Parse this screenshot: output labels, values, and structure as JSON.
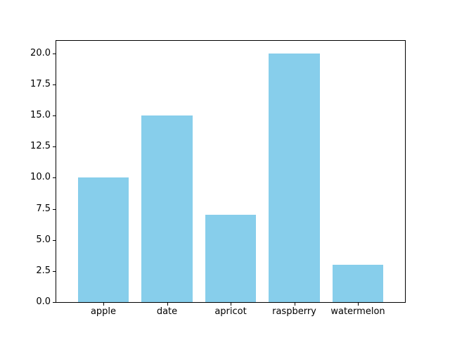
{
  "chart_data": {
    "type": "bar",
    "title": "",
    "xlabel": "",
    "ylabel": "",
    "categories": [
      "apple",
      "date",
      "apricot",
      "raspberry",
      "watermelon"
    ],
    "values": [
      10,
      15,
      7,
      20,
      3
    ],
    "yticks": [
      0.0,
      2.5,
      5.0,
      7.5,
      10.0,
      12.5,
      15.0,
      17.5,
      20.0
    ],
    "ytick_labels": [
      "0.0",
      "2.5",
      "5.0",
      "7.5",
      "10.0",
      "12.5",
      "15.0",
      "17.5",
      "20.0"
    ],
    "ylim": [
      0,
      21
    ],
    "bar_relative_width": 0.8,
    "grid": false,
    "legend": null,
    "colors": {
      "bar_fill": "#87ceeb",
      "spine": "#000000",
      "tick_text": "#000000",
      "figure_background": "#ffffff"
    }
  }
}
